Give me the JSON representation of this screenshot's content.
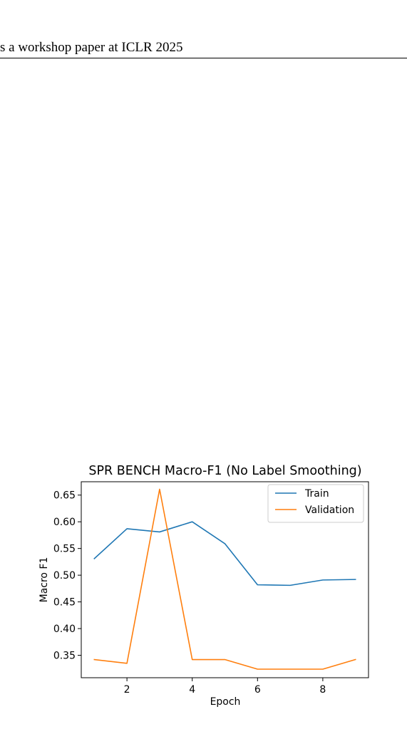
{
  "header": {
    "text": "s a workshop paper at ICLR 2025"
  },
  "chart_data": {
    "type": "line",
    "title": "SPR BENCH Macro-F1 (No Label Smoothing)",
    "xlabel": "Epoch",
    "ylabel": "Macro F1",
    "xlim": [
      0.6,
      9.4
    ],
    "ylim": [
      0.308,
      0.675
    ],
    "xticks": [
      2,
      4,
      6,
      8
    ],
    "yticks": [
      0.35,
      0.4,
      0.45,
      0.5,
      0.55,
      0.6,
      0.65
    ],
    "ytick_labels": [
      "0.35",
      "0.40",
      "0.45",
      "0.50",
      "0.55",
      "0.60",
      "0.65"
    ],
    "x": [
      1,
      2,
      3,
      4,
      5,
      6,
      7,
      8,
      9
    ],
    "series": [
      {
        "name": "Train",
        "color": "#1f77b4",
        "values": [
          0.531,
          0.587,
          0.581,
          0.6,
          0.559,
          0.482,
          0.481,
          0.491,
          0.492
        ]
      },
      {
        "name": "Validation",
        "color": "#ff7f0e",
        "values": [
          0.342,
          0.335,
          0.661,
          0.342,
          0.342,
          0.324,
          0.324,
          0.324,
          0.342
        ]
      }
    ],
    "legend": "top-right",
    "grid": false
  }
}
